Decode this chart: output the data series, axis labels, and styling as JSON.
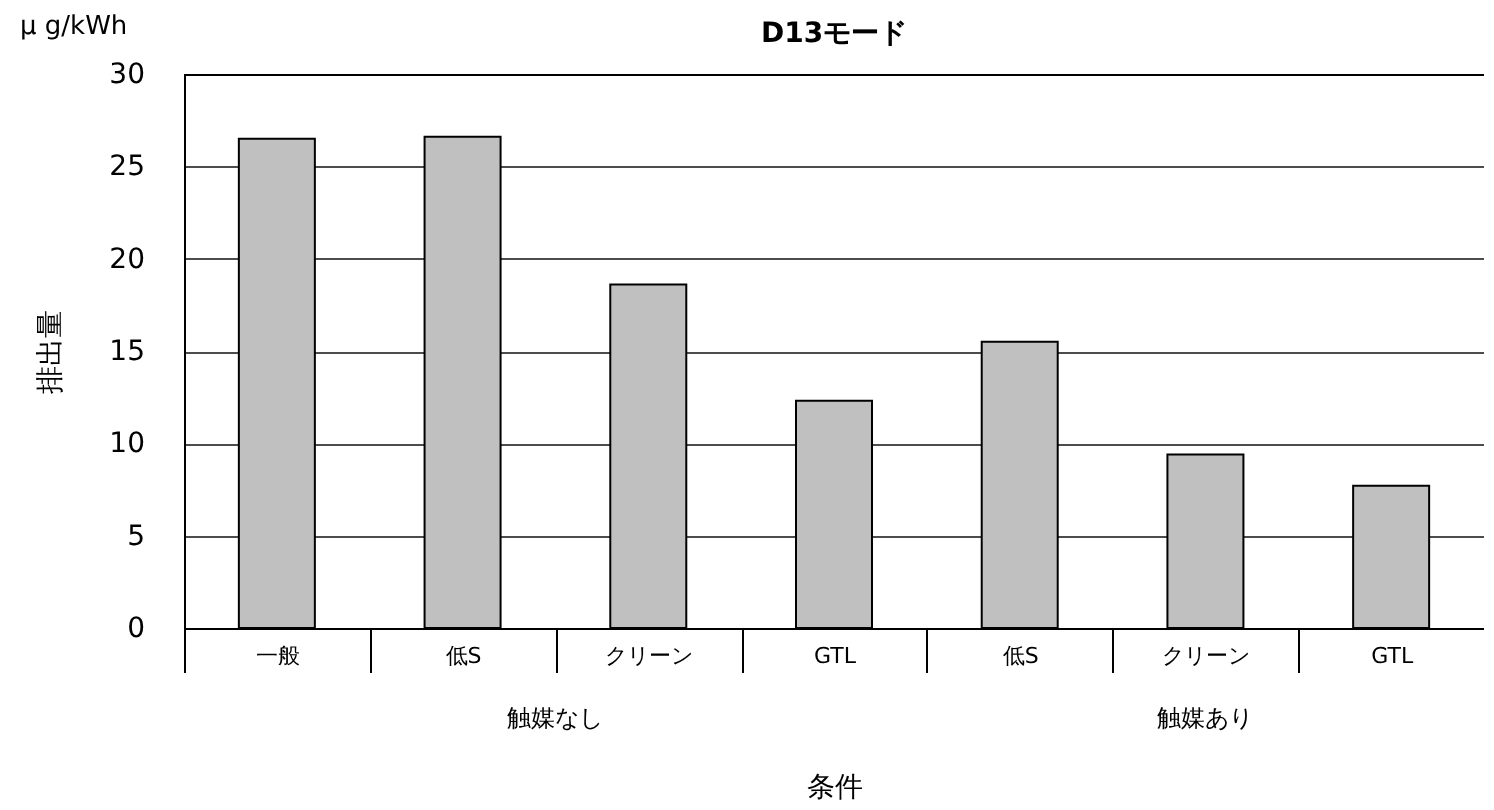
{
  "chart_data": {
    "type": "bar",
    "title": "D13モード",
    "ylabel": "排出量",
    "xlabel": "条件",
    "categories": [
      "一般",
      "低S",
      "クリーン",
      "GTL",
      "低S",
      "クリーン",
      "GTL"
    ],
    "values": [
      26.5,
      26.6,
      18.6,
      12.3,
      15.5,
      9.4,
      7.7
    ],
    "color": "#c0c0c0",
    "ylim": [
      0,
      30
    ],
    "yticks": [
      0,
      5,
      10,
      15,
      20,
      25,
      30
    ],
    "grid": "y",
    "annotations": [
      "μ g/kWh",
      "触媒なし",
      "触媒あり"
    ]
  }
}
